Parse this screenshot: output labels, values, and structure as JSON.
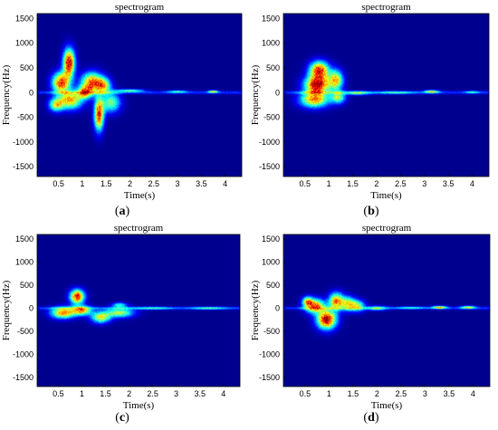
{
  "colors": {
    "background": "#00008f",
    "axis": "#000000",
    "colormap": [
      "#00008f",
      "#0000ff",
      "#0080ff",
      "#00ffff",
      "#80ff80",
      "#ffff00",
      "#ff8000",
      "#ff0000",
      "#800000"
    ]
  },
  "chart_data": [
    {
      "type": "heatmap",
      "id": "a",
      "title": "spectrogram",
      "xlabel": "Time(s)",
      "ylabel": "Frequency(Hz)",
      "xlim": [
        0.05,
        4.35
      ],
      "ylim": [
        -1700,
        1600
      ],
      "xticks": [
        0.5,
        1,
        1.5,
        2,
        2.5,
        3,
        3.5,
        4
      ],
      "xtick_labels": [
        "0.5",
        "1",
        "1.5",
        "2",
        "2.5",
        "3",
        "3.5",
        "4"
      ],
      "yticks": [
        1500,
        1000,
        500,
        0,
        -500,
        -1000,
        -1500
      ],
      "ytick_labels": [
        "1500",
        "1000",
        "500",
        "0",
        "-500",
        "-1000",
        "-1500"
      ],
      "caption_letter": "a",
      "blobs": [
        {
          "t": 0.72,
          "f": 600,
          "dt": 0.12,
          "df": 280,
          "a": 0.95
        },
        {
          "t": 0.55,
          "f": 200,
          "dt": 0.18,
          "df": 200,
          "a": 0.85
        },
        {
          "t": 0.75,
          "f": -150,
          "dt": 0.25,
          "df": 180,
          "a": 0.7
        },
        {
          "t": 0.45,
          "f": -250,
          "dt": 0.15,
          "df": 130,
          "a": 0.55
        },
        {
          "t": 1.2,
          "f": 200,
          "dt": 0.22,
          "df": 200,
          "a": 0.8
        },
        {
          "t": 1.05,
          "f": 0,
          "dt": 0.15,
          "df": 120,
          "a": 0.6
        },
        {
          "t": 1.35,
          "f": -450,
          "dt": 0.1,
          "df": 320,
          "a": 0.85
        },
        {
          "t": 1.45,
          "f": 150,
          "dt": 0.15,
          "df": 150,
          "a": 0.55
        },
        {
          "t": 1.6,
          "f": -200,
          "dt": 0.2,
          "df": 200,
          "a": 0.5
        },
        {
          "t": 2.0,
          "f": 40,
          "dt": 0.3,
          "df": 30,
          "a": 0.45
        },
        {
          "t": 3.0,
          "f": 20,
          "dt": 0.2,
          "df": 25,
          "a": 0.35
        },
        {
          "t": 3.75,
          "f": 20,
          "dt": 0.1,
          "df": 25,
          "a": 0.6
        }
      ]
    },
    {
      "type": "heatmap",
      "id": "b",
      "title": "spectrogram",
      "xlabel": "Time(s)",
      "ylabel": "Frequency(Hz)",
      "xlim": [
        0.05,
        4.35
      ],
      "ylim": [
        -1700,
        1600
      ],
      "xticks": [
        0.5,
        1,
        1.5,
        2,
        2.5,
        3,
        3.5,
        4
      ],
      "xtick_labels": [
        "0.5",
        "1",
        "1.5",
        "2",
        "2.5",
        "3",
        "3.5",
        "4"
      ],
      "yticks": [
        1500,
        1000,
        500,
        0,
        -500,
        -1000,
        -1500
      ],
      "ytick_labels": [
        "1500",
        "1000",
        "500",
        "0",
        "-500",
        "-1000",
        "-1500"
      ],
      "caption_letter": "b",
      "blobs": [
        {
          "t": 0.8,
          "f": 450,
          "dt": 0.2,
          "df": 180,
          "a": 0.85
        },
        {
          "t": 0.75,
          "f": 150,
          "dt": 0.25,
          "df": 180,
          "a": 0.95
        },
        {
          "t": 0.7,
          "f": -150,
          "dt": 0.3,
          "df": 150,
          "a": 0.7
        },
        {
          "t": 1.15,
          "f": 250,
          "dt": 0.15,
          "df": 200,
          "a": 0.65
        },
        {
          "t": 1.2,
          "f": -100,
          "dt": 0.15,
          "df": 120,
          "a": 0.5
        },
        {
          "t": 1.6,
          "f": -10,
          "dt": 0.25,
          "df": 40,
          "a": 0.4
        },
        {
          "t": 2.4,
          "f": 0,
          "dt": 0.4,
          "df": 30,
          "a": 0.3
        },
        {
          "t": 3.15,
          "f": 20,
          "dt": 0.15,
          "df": 30,
          "a": 0.55
        },
        {
          "t": 4.0,
          "f": 10,
          "dt": 0.15,
          "df": 25,
          "a": 0.3
        }
      ]
    },
    {
      "type": "heatmap",
      "id": "c",
      "title": "spectrogram",
      "xlabel": "Time(s)",
      "ylabel": "Frequency(Hz)",
      "xlim": [
        0.05,
        4.35
      ],
      "ylim": [
        -1700,
        1600
      ],
      "xticks": [
        0.5,
        1,
        1.5,
        2,
        2.5,
        3,
        3.5,
        4
      ],
      "xtick_labels": [
        "0.5",
        "1",
        "1.5",
        "2",
        "2.5",
        "3",
        "3.5",
        "4"
      ],
      "yticks": [
        1500,
        1000,
        500,
        0,
        -500,
        -1000,
        -1500
      ],
      "ytick_labels": [
        "1500",
        "1000",
        "500",
        "0",
        "-500",
        "-1000",
        "-1500"
      ],
      "caption_letter": "c",
      "blobs": [
        {
          "t": 0.9,
          "f": 250,
          "dt": 0.15,
          "df": 150,
          "a": 0.9
        },
        {
          "t": 0.6,
          "f": -100,
          "dt": 0.25,
          "df": 120,
          "a": 0.75
        },
        {
          "t": 1.0,
          "f": -50,
          "dt": 0.2,
          "df": 100,
          "a": 0.7
        },
        {
          "t": 1.4,
          "f": -200,
          "dt": 0.2,
          "df": 120,
          "a": 0.6
        },
        {
          "t": 1.8,
          "f": -100,
          "dt": 0.3,
          "df": 100,
          "a": 0.55
        },
        {
          "t": 1.8,
          "f": 70,
          "dt": 0.15,
          "df": 50,
          "a": 0.4
        },
        {
          "t": 2.5,
          "f": 0,
          "dt": 0.4,
          "df": 30,
          "a": 0.3
        },
        {
          "t": 3.7,
          "f": 0,
          "dt": 0.4,
          "df": 30,
          "a": 0.3
        }
      ]
    },
    {
      "type": "heatmap",
      "id": "d",
      "title": "spectrogram",
      "xlabel": "Time(s)",
      "ylabel": "Frequency(Hz)",
      "xlim": [
        0.05,
        4.35
      ],
      "ylim": [
        -1700,
        1600
      ],
      "xticks": [
        0.5,
        1,
        1.5,
        2,
        2.5,
        3,
        3.5,
        4
      ],
      "xtick_labels": [
        "0.5",
        "1",
        "1.5",
        "2",
        "2.5",
        "3",
        "3.5",
        "4"
      ],
      "yticks": [
        1500,
        1000,
        500,
        0,
        -500,
        -1000,
        -1500
      ],
      "ytick_labels": [
        "1500",
        "1000",
        "500",
        "0",
        "-500",
        "-1000",
        "-1500"
      ],
      "caption_letter": "d",
      "blobs": [
        {
          "t": 0.95,
          "f": -250,
          "dt": 0.2,
          "df": 200,
          "a": 0.95
        },
        {
          "t": 0.7,
          "f": 50,
          "dt": 0.2,
          "df": 150,
          "a": 0.8
        },
        {
          "t": 1.15,
          "f": 150,
          "dt": 0.15,
          "df": 180,
          "a": 0.75
        },
        {
          "t": 0.55,
          "f": 150,
          "dt": 0.1,
          "df": 100,
          "a": 0.5
        },
        {
          "t": 1.4,
          "f": 100,
          "dt": 0.15,
          "df": 150,
          "a": 0.55
        },
        {
          "t": 1.6,
          "f": 50,
          "dt": 0.15,
          "df": 120,
          "a": 0.5
        },
        {
          "t": 2.0,
          "f": 0,
          "dt": 0.2,
          "df": 50,
          "a": 0.4
        },
        {
          "t": 3.3,
          "f": 20,
          "dt": 0.15,
          "df": 30,
          "a": 0.6
        },
        {
          "t": 3.9,
          "f": 20,
          "dt": 0.15,
          "df": 30,
          "a": 0.55
        },
        {
          "t": 2.7,
          "f": 10,
          "dt": 0.3,
          "df": 25,
          "a": 0.3
        }
      ]
    }
  ]
}
